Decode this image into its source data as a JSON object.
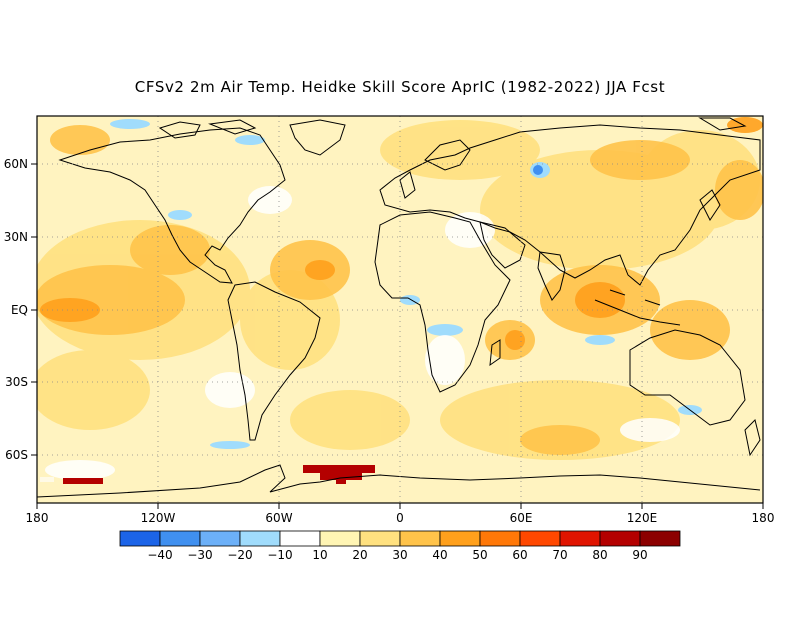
{
  "title": "CFSv2 2m Air Temp. Heidke Skill Score AprIC (1982-2022) JJA Fcst",
  "map": {
    "lon_ticks": [
      "180",
      "120W",
      "60W",
      "0",
      "60E",
      "120E",
      "180"
    ],
    "lat_ticks": [
      "60N",
      "30N",
      "EQ",
      "30S",
      "60S"
    ],
    "grid": "dotted",
    "background_fill": "#fff3c0"
  },
  "colorbar": {
    "labels": [
      "-40",
      "-30",
      "-20",
      "-10",
      "10",
      "20",
      "30",
      "40",
      "50",
      "60",
      "70",
      "80",
      "90"
    ],
    "colors": [
      "#1c64e8",
      "#4090f0",
      "#6cb0f8",
      "#a0dcfc",
      "#ffffff",
      "#fff5b4",
      "#ffe180",
      "#ffc34a",
      "#ffa01c",
      "#ff7808",
      "#ff4800",
      "#e01400",
      "#b40000",
      "#8c0000"
    ]
  }
}
